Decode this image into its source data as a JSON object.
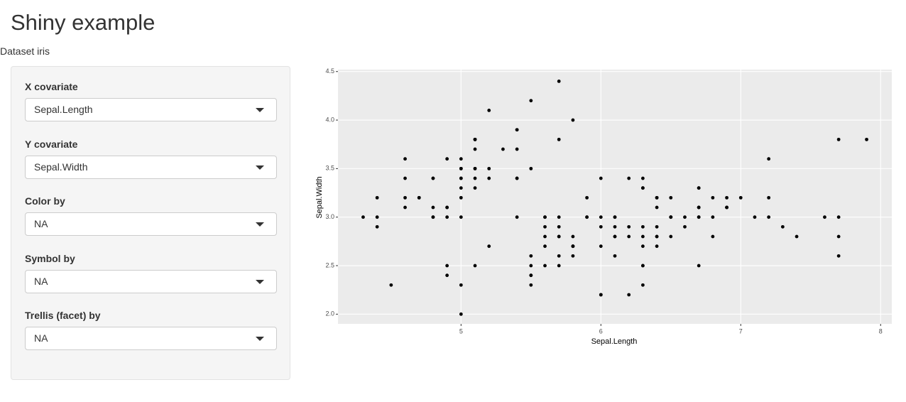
{
  "header": {
    "title": "Shiny example",
    "subtitle": "Dataset iris"
  },
  "controls": [
    {
      "label": "X covariate",
      "value": "Sepal.Length"
    },
    {
      "label": "Y covariate",
      "value": "Sepal.Width"
    },
    {
      "label": "Color by",
      "value": "NA"
    },
    {
      "label": "Symbol by",
      "value": "NA"
    },
    {
      "label": "Trellis (facet) by",
      "value": "NA"
    }
  ],
  "chart_data": {
    "type": "scatter",
    "xlabel": "Sepal.Length",
    "ylabel": "Sepal.Width",
    "color": "#000000",
    "grid": true,
    "x": [
      5.1,
      4.9,
      4.7,
      4.6,
      5.0,
      5.4,
      4.6,
      5.0,
      4.4,
      4.9,
      5.4,
      4.8,
      4.8,
      4.3,
      5.8,
      5.7,
      5.4,
      5.1,
      5.7,
      5.1,
      5.4,
      5.1,
      4.6,
      5.1,
      4.8,
      5.0,
      5.0,
      5.2,
      5.2,
      4.7,
      4.8,
      5.4,
      5.2,
      5.5,
      4.9,
      5.0,
      5.5,
      4.9,
      4.4,
      5.1,
      5.0,
      4.5,
      4.4,
      5.0,
      5.1,
      4.8,
      5.1,
      4.6,
      5.3,
      5.0,
      7.0,
      6.4,
      6.9,
      5.5,
      6.5,
      5.7,
      6.3,
      4.9,
      6.6,
      5.2,
      5.0,
      5.9,
      6.0,
      6.1,
      5.6,
      6.7,
      5.6,
      5.8,
      6.2,
      5.6,
      5.9,
      6.1,
      6.3,
      6.1,
      6.4,
      6.6,
      6.8,
      6.7,
      6.0,
      5.7,
      5.5,
      5.5,
      5.8,
      6.0,
      5.4,
      6.0,
      6.7,
      6.3,
      5.6,
      5.5,
      5.5,
      6.1,
      5.8,
      5.0,
      5.6,
      5.7,
      5.7,
      6.2,
      5.1,
      5.7,
      6.3,
      5.8,
      7.1,
      6.3,
      6.5,
      7.6,
      4.9,
      7.3,
      6.7,
      7.2,
      6.5,
      6.4,
      6.8,
      5.7,
      5.8,
      6.4,
      6.5,
      7.7,
      7.7,
      6.0,
      6.9,
      5.6,
      7.7,
      6.3,
      6.7,
      7.2,
      6.2,
      6.1,
      6.4,
      7.2,
      7.4,
      7.9,
      6.4,
      6.3,
      6.1,
      7.7,
      6.3,
      6.4,
      6.0,
      6.9,
      6.7,
      6.9,
      5.8,
      6.8,
      6.7,
      6.7,
      6.3,
      6.5,
      6.2,
      5.9
    ],
    "values": [
      3.5,
      3.0,
      3.2,
      3.1,
      3.6,
      3.9,
      3.4,
      3.4,
      2.9,
      3.1,
      3.7,
      3.4,
      3.0,
      3.0,
      4.0,
      4.4,
      3.9,
      3.5,
      3.8,
      3.8,
      3.4,
      3.7,
      3.6,
      3.3,
      3.4,
      3.0,
      3.4,
      3.5,
      3.4,
      3.2,
      3.1,
      3.4,
      4.1,
      4.2,
      3.1,
      3.2,
      3.5,
      3.6,
      3.0,
      3.4,
      3.5,
      2.3,
      3.2,
      3.5,
      3.8,
      3.0,
      3.8,
      3.2,
      3.7,
      3.3,
      3.2,
      3.2,
      3.1,
      2.3,
      2.8,
      2.8,
      3.3,
      2.4,
      2.9,
      2.7,
      2.0,
      3.0,
      2.2,
      2.9,
      2.9,
      3.1,
      3.0,
      2.7,
      2.2,
      2.5,
      3.2,
      2.8,
      2.5,
      2.8,
      2.9,
      3.0,
      2.8,
      3.0,
      2.9,
      2.6,
      2.4,
      2.4,
      2.7,
      2.7,
      3.0,
      3.4,
      3.1,
      2.3,
      3.0,
      2.5,
      2.6,
      3.0,
      2.6,
      2.3,
      2.7,
      3.0,
      2.9,
      2.9,
      2.5,
      2.8,
      3.3,
      2.7,
      3.0,
      2.9,
      3.0,
      3.0,
      2.5,
      2.9,
      2.5,
      3.6,
      3.2,
      2.7,
      3.0,
      2.5,
      2.8,
      3.2,
      3.0,
      3.8,
      2.6,
      2.2,
      3.2,
      2.8,
      2.8,
      2.7,
      3.3,
      3.2,
      2.8,
      3.0,
      2.8,
      3.0,
      2.8,
      3.8,
      2.8,
      2.8,
      2.6,
      3.0,
      3.4,
      3.1,
      3.0,
      3.1,
      3.1,
      3.1,
      2.7,
      3.2,
      3.3,
      3.0,
      2.5,
      3.0,
      3.4,
      3.0
    ],
    "xlim": [
      4.12,
      8.08
    ],
    "ylim": [
      1.9,
      4.52
    ],
    "xticks": [
      5,
      6,
      7,
      8
    ],
    "yticks": [
      {
        "value": 2,
        "label": "2.0"
      },
      2.5,
      {
        "value": 3,
        "label": "3.0"
      },
      3.5,
      {
        "value": 4,
        "label": "4.0"
      },
      4.5
    ]
  }
}
